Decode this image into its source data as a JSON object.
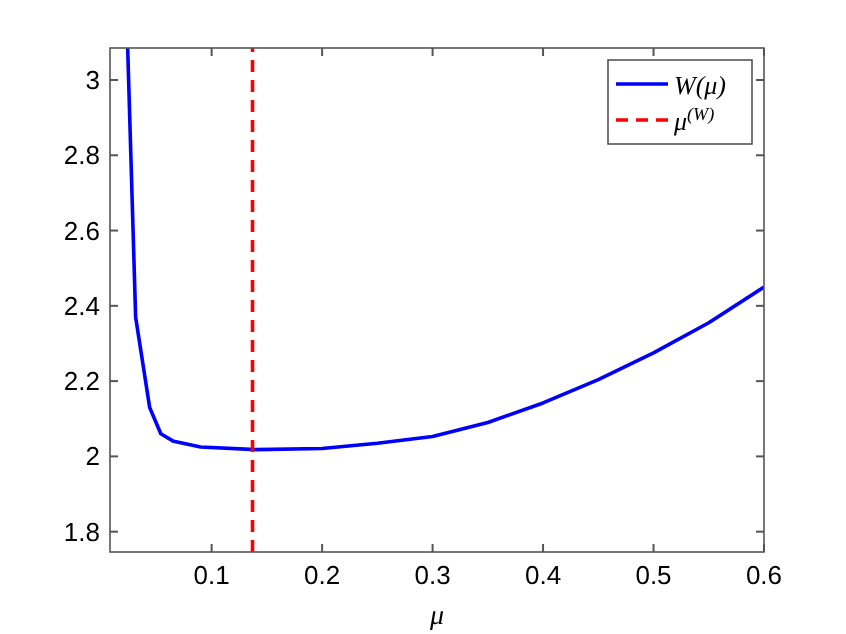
{
  "chart_data": {
    "type": "line",
    "xlabel": "μ",
    "x": [
      0.024,
      0.0312,
      0.0439,
      0.054,
      0.0656,
      0.09,
      0.14,
      0.2,
      0.25,
      0.3,
      0.35,
      0.4,
      0.45,
      0.5,
      0.55,
      0.6
    ],
    "series": [
      {
        "name": "W(μ)",
        "color": "#0000ff",
        "values": [
          3.085,
          2.37,
          2.13,
          2.06,
          2.04,
          2.025,
          2.018,
          2.021,
          2.035,
          2.053,
          2.09,
          2.142,
          2.204,
          2.275,
          2.355,
          2.45
        ]
      },
      {
        "name": "μ$^{(W)}$",
        "color": "#ff0000",
        "line_style": "dashed",
        "x": [
          0.137,
          0.137
        ],
        "values": [
          1.746,
          3.085
        ]
      }
    ],
    "xlim": [
      0.008,
      0.6
    ],
    "ylim": [
      1.746,
      3.085
    ],
    "xticks": [
      0.1,
      0.2,
      0.3,
      0.4,
      0.5,
      0.6
    ],
    "yticks": [
      1.8,
      2,
      2.2,
      2.4,
      2.6,
      2.8,
      3
    ],
    "grid": false,
    "legend": "top right",
    "line_style": "solid",
    "marker": "none"
  }
}
